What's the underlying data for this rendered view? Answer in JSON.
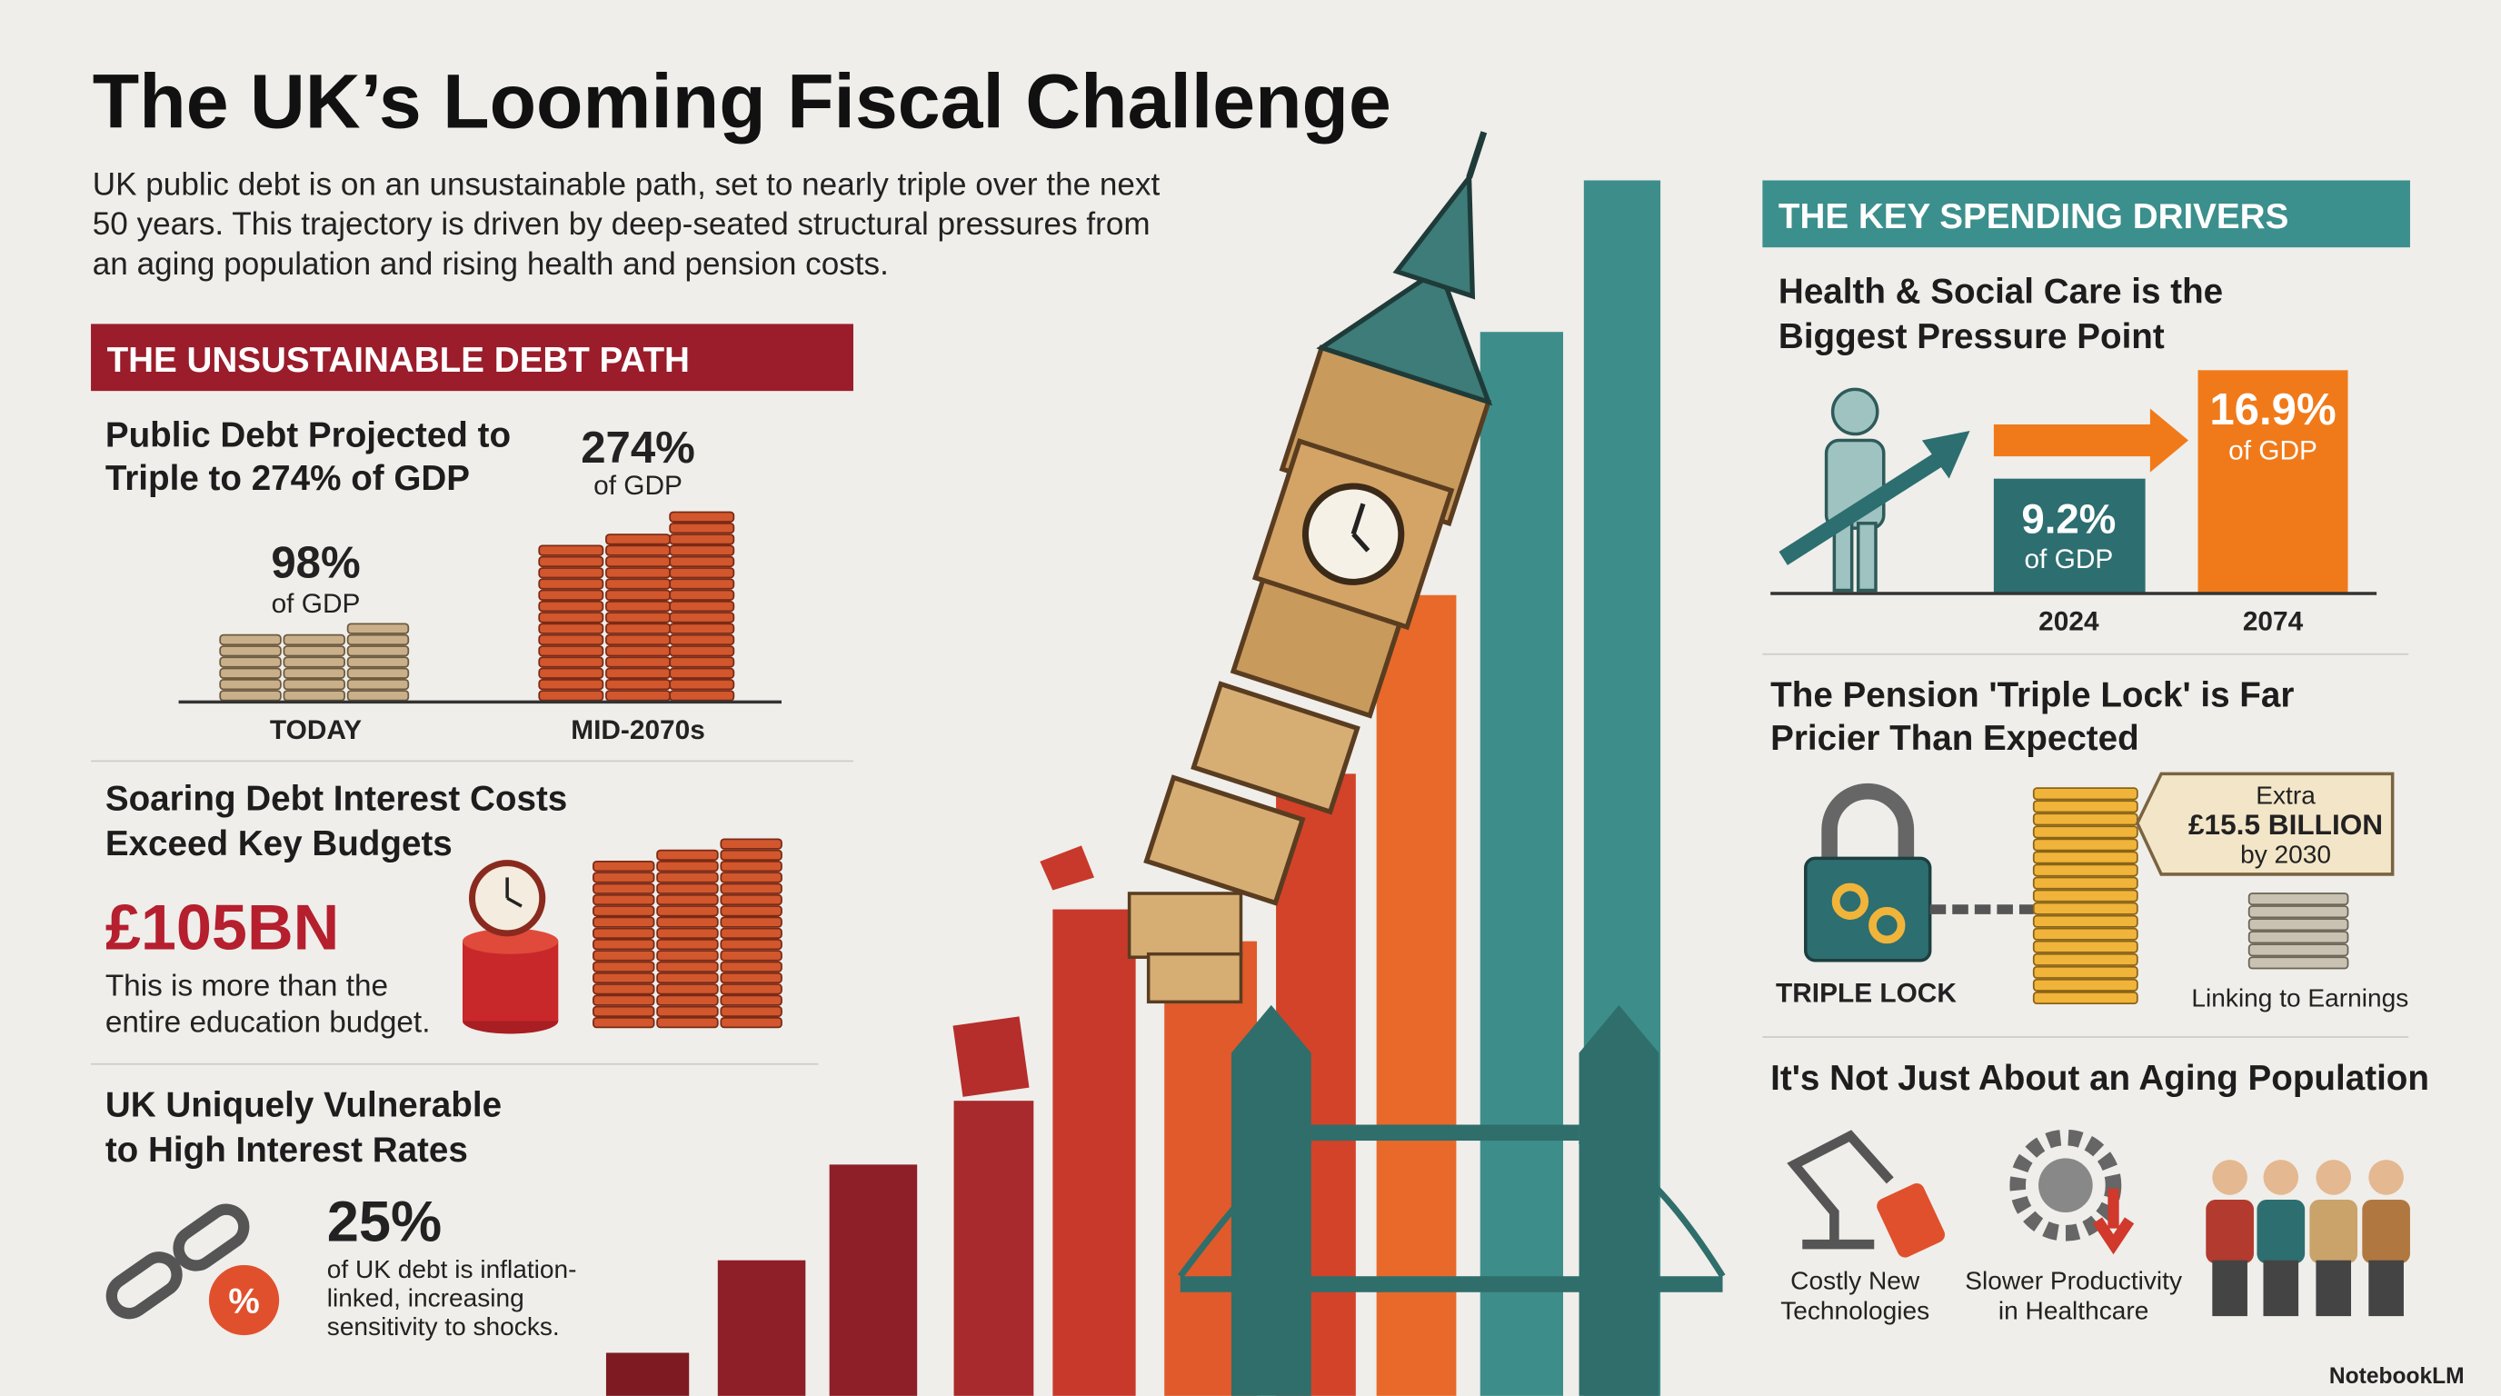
{
  "header": {
    "title": "The UK’s Looming Fiscal Challenge",
    "intro_lines": [
      "UK public debt is on an unsustainable path, set to nearly triple over the next",
      "50 years. This trajectory is driven by deep-seated structural pressures from",
      "an aging population and rising health and pension costs."
    ]
  },
  "debt_path": {
    "heading": "THE UNSUSTAINABLE DEBT PATH",
    "projection": {
      "title_lines": [
        "Public Debt Projected to",
        "Triple to 274% of GDP"
      ],
      "today": {
        "value": "98%",
        "unit": "of GDP",
        "label": "TODAY"
      },
      "future": {
        "value": "274%",
        "unit": "of GDP",
        "label": "MID-2070s"
      }
    },
    "interest": {
      "title_lines": [
        "Soaring Debt Interest Costs",
        "Exceed Key Budgets"
      ],
      "amount": "£105BN",
      "note_lines": [
        "This is more than the",
        "entire education budget."
      ]
    },
    "vulnerable": {
      "title_lines": [
        "UK Uniquely Vulnerable",
        "to High Interest Rates"
      ],
      "value": "25%",
      "note_lines": [
        "of UK debt is inflation-",
        "linked, increasing",
        "sensitivity to shocks."
      ]
    }
  },
  "drivers": {
    "heading": "THE KEY SPENDING DRIVERS",
    "health": {
      "title_lines": [
        "Health & Social Care is the",
        "Biggest Pressure Point"
      ],
      "bars": [
        {
          "value": "9.2%",
          "unit": "of GDP",
          "year": "2024"
        },
        {
          "value": "16.9%",
          "unit": "of GDP",
          "year": "2074"
        }
      ]
    },
    "pension": {
      "title_lines": [
        "The Pension 'Triple Lock' is Far",
        "Pricier Than Expected"
      ],
      "tag_lines": [
        "Extra",
        "£15.5 BILLION",
        "by 2030"
      ],
      "lock_label": "TRIPLE LOCK",
      "earnings_label": "Linking to Earnings"
    },
    "aging": {
      "title": "It's Not Just About an Aging Population",
      "items": [
        [
          "Costly New",
          "Technologies"
        ],
        [
          "Slower Productivity",
          "in Healthcare"
        ]
      ]
    }
  },
  "branding": "NotebookLM"
}
